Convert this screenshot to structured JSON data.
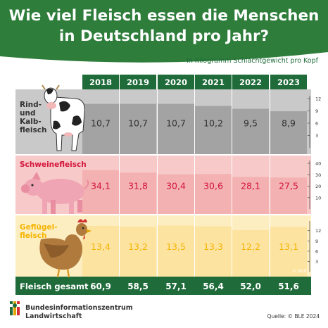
{
  "header": {
    "title_line1": "Wie viel Fleisch essen die Menschen",
    "title_line2": "in Deutschland pro Jahr?",
    "subtitle": "in Kilogramm Schlachtgewicht pro Kopf"
  },
  "colors": {
    "brand_green": "#1f6b3a",
    "header_green": "#2e7d3b",
    "beef_bg": "#c9c9c9",
    "beef_bar": "#a3a3a3",
    "pork_bg": "#f7c9c9",
    "pork_bar": "#f3b1b1",
    "pork_text": "#d4163c",
    "poultry_bg": "#fdeec2",
    "poultry_bar": "#fde3a0",
    "poultry_text": "#f5b400"
  },
  "chart_data": {
    "type": "table",
    "title": "Wie viel Fleisch essen die Menschen in Deutschland pro Jahr?",
    "unit": "in Kilogramm Schlachtgewicht pro Kopf",
    "years": [
      "2018",
      "2019",
      "2020",
      "2021",
      "2022",
      "2023"
    ],
    "series": [
      {
        "name": "Rind- und Kalbfleisch",
        "label_lines": [
          "Rind-",
          "und",
          "Kalb-",
          "fleisch"
        ],
        "values": [
          10.7,
          10.7,
          10.7,
          10.2,
          9.5,
          8.9
        ],
        "labels": [
          "10,7",
          "10,7",
          "10,7",
          "10,2",
          "9,5",
          "8,9"
        ],
        "axis_max": 12,
        "ticks": [
          3,
          6,
          9,
          12
        ]
      },
      {
        "name": "Schweinefleisch",
        "label_lines": [
          "Schweinefleisch"
        ],
        "values": [
          34.1,
          31.8,
          30.4,
          30.6,
          28.1,
          27.5
        ],
        "labels": [
          "34,1",
          "31,8",
          "30,4",
          "30,6",
          "28,1",
          "27,5"
        ],
        "axis_max": 40,
        "ticks": [
          10,
          20,
          30,
          40
        ]
      },
      {
        "name": "Geflügelfleisch",
        "label_lines": [
          "Geflügel-",
          "fleisch"
        ],
        "values": [
          13.4,
          13.2,
          13.5,
          13.3,
          12.2,
          13.1
        ],
        "labels": [
          "13,4",
          "13,2",
          "13,5",
          "13,3",
          "12,2",
          "13,1"
        ],
        "axis_max": 14,
        "ticks": [
          3,
          6,
          9,
          12
        ]
      }
    ],
    "total": {
      "label": "Fleisch gesamt",
      "labels": [
        "60,9",
        "58,5",
        "57,1",
        "56,4",
        "52,0",
        "51,6"
      ]
    }
  },
  "watermark": "© BLE",
  "footer": {
    "org_line1": "Bundesinformationszentrum",
    "org_line2": "Landwirtschaft",
    "source": "Quelle: © BLE 2024"
  }
}
